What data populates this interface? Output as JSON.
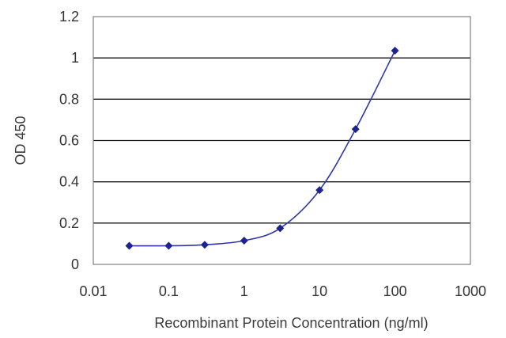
{
  "chart_data": {
    "type": "line",
    "title": "",
    "xlabel": "Recombinant Protein Concentration (ng/ml)",
    "ylabel": "OD 450",
    "x_scale": "log",
    "xlim": [
      0.01,
      1000
    ],
    "ylim": [
      0,
      1.2
    ],
    "x_tick_labels": [
      "0.01",
      "0.1",
      "1",
      "10",
      "100",
      "1000"
    ],
    "x_ticks": [
      0.01,
      0.1,
      1,
      10,
      100,
      1000
    ],
    "y_tick_labels": [
      "0",
      "0.2",
      "0.4",
      "0.6",
      "0.8",
      "1",
      "1.2"
    ],
    "y_ticks": [
      0,
      0.2,
      0.4,
      0.6,
      0.8,
      1.0,
      1.2
    ],
    "grid": "horizontal",
    "legend": "none",
    "series": [
      {
        "x": [
          0.03,
          0.1,
          0.3,
          1,
          3,
          10,
          30,
          100
        ],
        "y": [
          0.09,
          0.09,
          0.095,
          0.115,
          0.175,
          0.36,
          0.655,
          1.035
        ]
      }
    ],
    "colors": {
      "line": "#2f37a8",
      "marker": "#1c2290",
      "grid": "#1a1a1a",
      "frame": "#808080",
      "text": "#333333"
    }
  }
}
